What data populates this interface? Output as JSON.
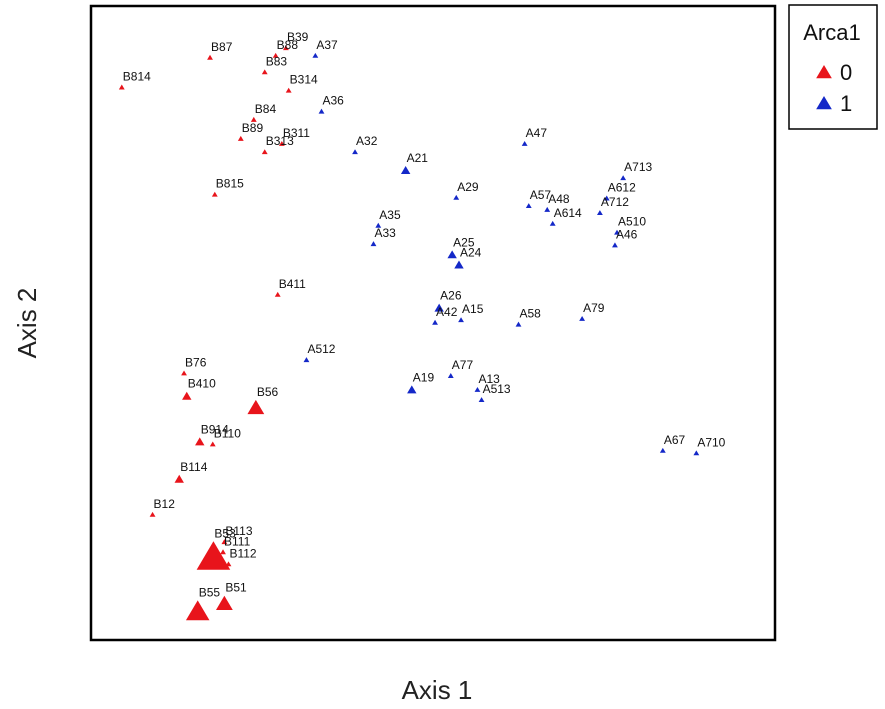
{
  "chart_data": {
    "type": "scatter",
    "xlabel": "Axis 1",
    "ylabel": "Axis 2",
    "xlim": [
      0,
      100
    ],
    "ylim": [
      0,
      100
    ],
    "grid": false,
    "legend": {
      "title": "Arca1",
      "placement": "top-right-outside",
      "entries": [
        {
          "label": "0",
          "color": "#e8141b"
        },
        {
          "label": "1",
          "color": "#1428c8"
        }
      ]
    },
    "series": [
      {
        "name": "0",
        "color": "#e8141b",
        "points": [
          {
            "label": "B87",
            "x": 17.4,
            "y": 91.9,
            "size": 1
          },
          {
            "label": "B88",
            "x": 27.0,
            "y": 92.2,
            "size": 1
          },
          {
            "label": "B39",
            "x": 28.5,
            "y": 93.4,
            "size": 1
          },
          {
            "label": "B83",
            "x": 25.4,
            "y": 89.6,
            "size": 1
          },
          {
            "label": "B814",
            "x": 4.5,
            "y": 87.2,
            "size": 1
          },
          {
            "label": "B314",
            "x": 28.9,
            "y": 86.7,
            "size": 1
          },
          {
            "label": "B84",
            "x": 23.8,
            "y": 82.1,
            "size": 1
          },
          {
            "label": "B89",
            "x": 21.9,
            "y": 79.1,
            "size": 1
          },
          {
            "label": "B311",
            "x": 27.9,
            "y": 78.3,
            "size": 1
          },
          {
            "label": "B313",
            "x": 25.4,
            "y": 77.0,
            "size": 1
          },
          {
            "label": "B815",
            "x": 18.1,
            "y": 70.3,
            "size": 1
          },
          {
            "label": "B411",
            "x": 27.3,
            "y": 54.5,
            "size": 1
          },
          {
            "label": "B76",
            "x": 13.6,
            "y": 42.1,
            "size": 1
          },
          {
            "label": "B410",
            "x": 14.0,
            "y": 38.5,
            "size": 2
          },
          {
            "label": "B56",
            "x": 24.1,
            "y": 36.7,
            "size": 3
          },
          {
            "label": "B914",
            "x": 15.9,
            "y": 31.3,
            "size": 2
          },
          {
            "label": "B110",
            "x": 17.8,
            "y": 30.9,
            "size": 1
          },
          {
            "label": "B114",
            "x": 12.9,
            "y": 25.4,
            "size": 2
          },
          {
            "label": "B12",
            "x": 9.0,
            "y": 19.8,
            "size": 1
          },
          {
            "label": "B53",
            "x": 17.9,
            "y": 13.2,
            "size": 5
          },
          {
            "label": "B113",
            "x": 19.5,
            "y": 15.5,
            "size": 1
          },
          {
            "label": "B111",
            "x": 19.3,
            "y": 13.9,
            "size": 1
          },
          {
            "label": "B112",
            "x": 20.1,
            "y": 12.0,
            "size": 1
          },
          {
            "label": "B51",
            "x": 19.5,
            "y": 5.8,
            "size": 3
          },
          {
            "label": "B55",
            "x": 15.6,
            "y": 4.6,
            "size": 4
          }
        ]
      },
      {
        "name": "1",
        "color": "#1428c8",
        "points": [
          {
            "label": "A37",
            "x": 32.8,
            "y": 92.2,
            "size": 1
          },
          {
            "label": "A36",
            "x": 33.7,
            "y": 83.4,
            "size": 1
          },
          {
            "label": "A32",
            "x": 38.6,
            "y": 77.0,
            "size": 1
          },
          {
            "label": "A47",
            "x": 63.4,
            "y": 78.3,
            "size": 1
          },
          {
            "label": "A21",
            "x": 46.0,
            "y": 74.1,
            "size": 2
          },
          {
            "label": "A29",
            "x": 53.4,
            "y": 69.8,
            "size": 1
          },
          {
            "label": "A713",
            "x": 77.8,
            "y": 72.9,
            "size": 1
          },
          {
            "label": "A57",
            "x": 64.0,
            "y": 68.5,
            "size": 1
          },
          {
            "label": "A48",
            "x": 66.7,
            "y": 67.9,
            "size": 1
          },
          {
            "label": "A612",
            "x": 75.4,
            "y": 69.7,
            "size": 1
          },
          {
            "label": "A712",
            "x": 74.4,
            "y": 67.4,
            "size": 1
          },
          {
            "label": "A614",
            "x": 67.5,
            "y": 65.7,
            "size": 1
          },
          {
            "label": "A510",
            "x": 76.9,
            "y": 64.3,
            "size": 1
          },
          {
            "label": "A46",
            "x": 76.6,
            "y": 62.3,
            "size": 1
          },
          {
            "label": "A35",
            "x": 42.0,
            "y": 65.4,
            "size": 1
          },
          {
            "label": "A33",
            "x": 41.3,
            "y": 62.5,
            "size": 1
          },
          {
            "label": "A25",
            "x": 52.8,
            "y": 60.8,
            "size": 2
          },
          {
            "label": "A24",
            "x": 53.8,
            "y": 59.2,
            "size": 2
          },
          {
            "label": "A26",
            "x": 50.9,
            "y": 52.4,
            "size": 2
          },
          {
            "label": "A42",
            "x": 50.3,
            "y": 50.1,
            "size": 1
          },
          {
            "label": "A15",
            "x": 54.1,
            "y": 50.5,
            "size": 1
          },
          {
            "label": "A58",
            "x": 62.5,
            "y": 49.8,
            "size": 1
          },
          {
            "label": "A79",
            "x": 71.8,
            "y": 50.7,
            "size": 1
          },
          {
            "label": "A512",
            "x": 31.5,
            "y": 44.2,
            "size": 1
          },
          {
            "label": "A77",
            "x": 52.6,
            "y": 41.7,
            "size": 1
          },
          {
            "label": "A19",
            "x": 46.9,
            "y": 39.5,
            "size": 2
          },
          {
            "label": "A13",
            "x": 56.5,
            "y": 39.5,
            "size": 1
          },
          {
            "label": "A513",
            "x": 57.1,
            "y": 37.9,
            "size": 1
          },
          {
            "label": "A67",
            "x": 83.6,
            "y": 29.9,
            "size": 1
          },
          {
            "label": "A710",
            "x": 88.5,
            "y": 29.5,
            "size": 1
          }
        ]
      }
    ]
  }
}
